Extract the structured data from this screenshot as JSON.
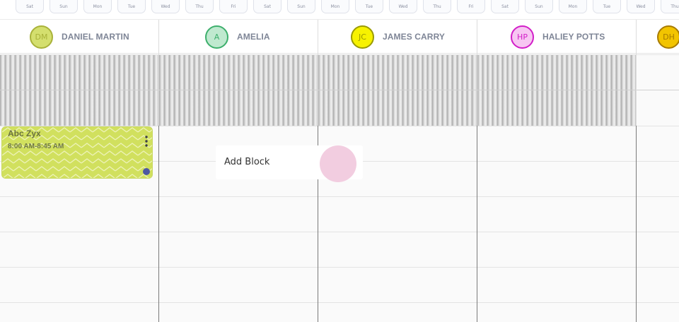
{
  "day_strip": {
    "days": [
      "Sat",
      "Sun",
      "Mon",
      "Tue",
      "Wed",
      "Thu",
      "Fri",
      "Sat",
      "Sun",
      "Mon",
      "Tue",
      "Wed",
      "Thu",
      "Fri",
      "Sat",
      "Sun",
      "Mon",
      "Tue",
      "Wed",
      "Thu"
    ]
  },
  "staff": [
    {
      "initials": "DM",
      "name": "DANIEL MARTIN",
      "color": "#a9b23a",
      "bg": "#d4df6e"
    },
    {
      "initials": "A",
      "name": "AMELIA",
      "color": "#3daf6c",
      "bg": "#bfe9cf"
    },
    {
      "initials": "JC",
      "name": "JAMES CARRY",
      "color": "#9a9a00",
      "bg": "#f7f200"
    },
    {
      "initials": "HP",
      "name": "HALIEY POTTS",
      "color": "#d21ec8",
      "bg": "#f7c6f2"
    },
    {
      "initials": "DH",
      "name": "",
      "color": "#a77b00",
      "bg": "#f2c400"
    }
  ],
  "appointment": {
    "title": "Abc Zyx",
    "time": "8:00 AM-8:45 AM",
    "color": "#d1e05e",
    "menu_icon": "more-vertical-icon",
    "status_color": "#4e58a2"
  },
  "add_block": {
    "label": "Add Block",
    "accent": "#f2cde0"
  }
}
